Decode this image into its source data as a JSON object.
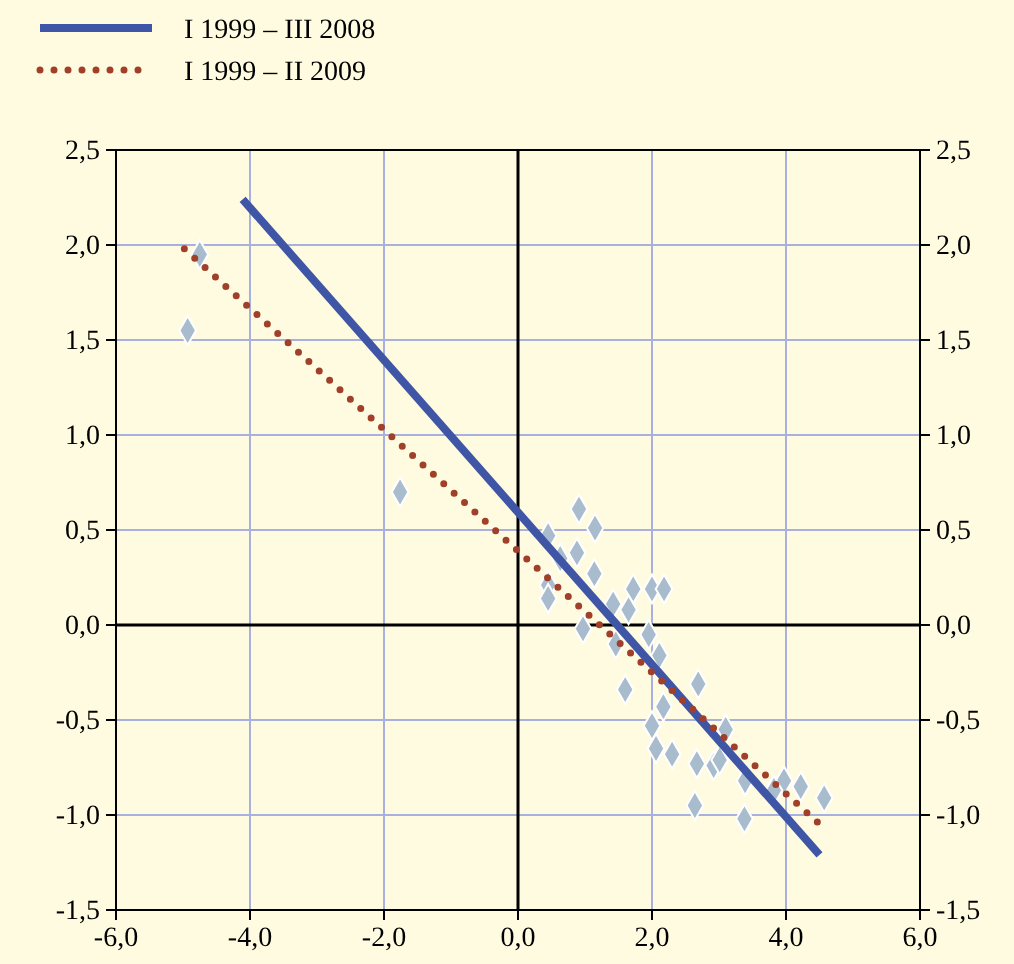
{
  "chart_data": {
    "type": "scatter",
    "legend": "top left",
    "grid": true,
    "xlim": [
      -6,
      6
    ],
    "xticks": [
      {
        "value": -6,
        "label": "-6,0"
      },
      {
        "value": -4,
        "label": "-4,0"
      },
      {
        "value": -2,
        "label": "-2,0"
      },
      {
        "value": 0,
        "label": "0,0"
      },
      {
        "value": 2,
        "label": "2,0"
      },
      {
        "value": 4,
        "label": "4,0"
      },
      {
        "value": 6,
        "label": "6,0"
      }
    ],
    "ylim": [
      -1.5,
      2.5
    ],
    "yticks": [
      {
        "value": -1.5,
        "label": "-1,5"
      },
      {
        "value": -1,
        "label": "-1,0"
      },
      {
        "value": -0.5,
        "label": "-0,5"
      },
      {
        "value": 0,
        "label": "0,0"
      },
      {
        "value": 0.5,
        "label": "0,5"
      },
      {
        "value": 1,
        "label": "1,0"
      },
      {
        "value": 1.5,
        "label": "1,5"
      },
      {
        "value": 2,
        "label": "2,0"
      },
      {
        "value": 2.5,
        "label": "2,5"
      }
    ],
    "y2lim": [
      -1.5,
      2.5
    ],
    "y2ticks": [
      {
        "value": -1.5,
        "label": "-1,5"
      },
      {
        "value": -1,
        "label": "-1,0"
      },
      {
        "value": -0.5,
        "label": "-0,5"
      },
      {
        "value": 0,
        "label": "0,0"
      },
      {
        "value": 0.5,
        "label": "0,5"
      },
      {
        "value": 1,
        "label": "1,0"
      },
      {
        "value": 1.5,
        "label": "1,5"
      },
      {
        "value": 2,
        "label": "2,0"
      },
      {
        "value": 2.5,
        "label": "2,5"
      }
    ],
    "series": [
      {
        "color": "#a9bccd",
        "marker": "diamond",
        "x": [
          0.91,
          1.15,
          0.45,
          0.88,
          0.63,
          1.14,
          0.45,
          0.45,
          1.72,
          2.0,
          2.18,
          1.42,
          1.65,
          0.97,
          1.95,
          1.46,
          2.11,
          2.69,
          1.6,
          2.17,
          3.1,
          2.0,
          2.06,
          2.3,
          2.67,
          2.92,
          3.01,
          3.39,
          3.97,
          4.22,
          3.82,
          4.57,
          2.64,
          3.38,
          -4.75,
          -4.93,
          -1.76
        ],
        "values": [
          0.61,
          0.51,
          0.47,
          0.38,
          0.35,
          0.27,
          0.21,
          0.14,
          0.19,
          0.19,
          0.19,
          0.11,
          0.08,
          -0.02,
          -0.05,
          -0.1,
          -0.16,
          -0.31,
          -0.34,
          -0.43,
          -0.55,
          -0.53,
          -0.65,
          -0.68,
          -0.73,
          -0.74,
          -0.71,
          -0.82,
          -0.82,
          -0.85,
          -0.87,
          -0.91,
          -0.95,
          -1.02,
          1.95,
          1.55,
          0.7
        ]
      },
      {
        "type": "line",
        "name": "I 1999 – III 2008",
        "color": "#3f55a5",
        "line_style": "solid",
        "marker": "none",
        "x": [
          -4.11,
          4.5
        ],
        "values": [
          2.24,
          -1.21
        ]
      },
      {
        "type": "line",
        "name": "I 1999 – II 2009",
        "color": "#a0402a",
        "line_style": "dotted",
        "marker": "none",
        "x": [
          -4.98,
          4.57
        ],
        "values": [
          1.98,
          -1.07
        ]
      }
    ]
  }
}
